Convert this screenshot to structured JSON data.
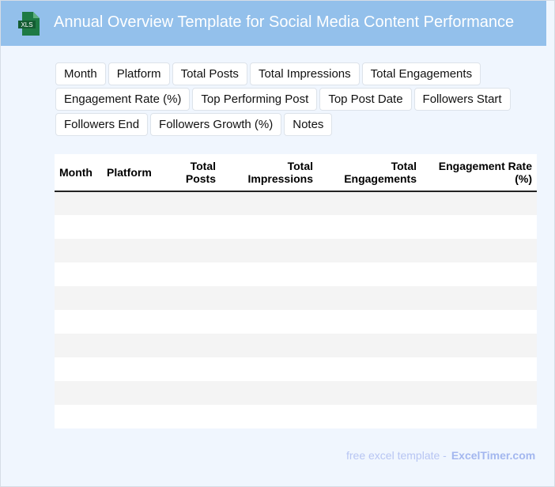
{
  "header": {
    "title": "Annual Overview Template for Social Media Content Performance",
    "logo_text": "XLS",
    "logo_color": "#1e7a44"
  },
  "tags": [
    "Month",
    "Platform",
    "Total Posts",
    "Total Impressions",
    "Total Engagements",
    "Engagement Rate (%)",
    "Top Performing Post",
    "Top Post Date",
    "Followers Start",
    "Followers End",
    "Followers Growth (%)",
    "Notes"
  ],
  "table": {
    "columns": [
      "Month",
      "Platform",
      "Total Posts",
      "Total Impressions",
      "Total Engagements",
      "Engagement Rate (%)"
    ],
    "rows": 10
  },
  "footer": {
    "text": "free excel template -",
    "brand": "ExcelTimer.com"
  }
}
